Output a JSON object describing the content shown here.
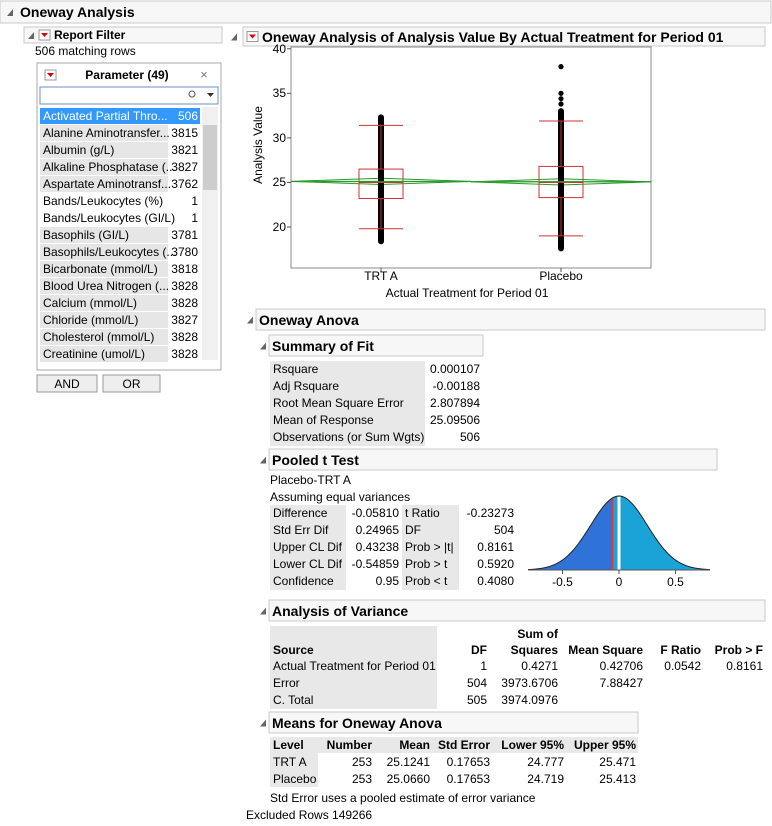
{
  "header": {
    "title": "Oneway Analysis"
  },
  "filter": {
    "title": "Report Filter",
    "matching": "506 matching rows",
    "list_title": "Parameter (49)",
    "items": [
      {
        "label": "Activated Partial Thro...",
        "count": 506
      },
      {
        "label": "Alanine Aminotransfer...",
        "count": 3815
      },
      {
        "label": "Albumin (g/L)",
        "count": 3821
      },
      {
        "label": "Alkaline Phosphatase (...",
        "count": 3827
      },
      {
        "label": "Aspartate Aminotransf...",
        "count": 3762
      },
      {
        "label": "Bands/Leukocytes (%)",
        "count": 1
      },
      {
        "label": "Bands/Leukocytes (GI/L)",
        "count": 1
      },
      {
        "label": "Basophils (GI/L)",
        "count": 3781
      },
      {
        "label": "Basophils/Leukocytes (...",
        "count": 3780
      },
      {
        "label": "Bicarbonate (mmol/L)",
        "count": 3818
      },
      {
        "label": "Blood Urea Nitrogen (...",
        "count": 3828
      },
      {
        "label": "Calcium (mmol/L)",
        "count": 3828
      },
      {
        "label": "Chloride (mmol/L)",
        "count": 3827
      },
      {
        "label": "Cholesterol (mmol/L)",
        "count": 3828
      },
      {
        "label": "Creatinine (umol/L)",
        "count": 3828
      }
    ],
    "buttons": [
      "AND",
      "OR"
    ]
  },
  "report": {
    "title": "Oneway Analysis of Analysis Value By Actual Treatment for Period 01"
  },
  "chart_data": {
    "type": "box",
    "ylabel": "Analysis Value",
    "xlabel": "Actual Treatment for Period 01",
    "categories": [
      "TRT A",
      "Placebo"
    ],
    "ylim": [
      15.4,
      40.2
    ],
    "yticks": [
      20,
      25,
      30,
      35,
      40
    ],
    "boxes": [
      {
        "whisker_low": 19.8,
        "q1": 23.2,
        "median": 25.0,
        "q3": 26.5,
        "whisker_high": 31.4,
        "strip": [
          18.4,
          32.3
        ]
      },
      {
        "whisker_low": 19.0,
        "q1": 23.3,
        "median": 25.0,
        "q3": 26.8,
        "whisker_high": 31.9,
        "strip": [
          17.6,
          33.0
        ],
        "outliers": [
          33.8,
          34.4,
          35.0,
          38.0
        ]
      }
    ]
  },
  "anova": {
    "title": "Oneway Anova"
  },
  "summary_of_fit": {
    "title": "Summary of Fit",
    "rows": [
      [
        "Rsquare",
        "0.000107"
      ],
      [
        "Adj Rsquare",
        "-0.00188"
      ],
      [
        "Root Mean Square Error",
        "2.807894"
      ],
      [
        "Mean of Response",
        "25.09506"
      ],
      [
        "Observations (or Sum Wgts)",
        "506"
      ]
    ]
  },
  "pooled_t": {
    "title": "Pooled t Test",
    "subtitle": "Placebo-TRT A",
    "note": "Assuming equal variances",
    "rows": [
      [
        "Difference",
        "-0.05810",
        "t Ratio",
        "-0.23273"
      ],
      [
        "Std Err Dif",
        "0.24965",
        "DF",
        "504"
      ],
      [
        "Upper CL Dif",
        "0.43238",
        "Prob > |t|",
        "0.8161"
      ],
      [
        "Lower CL Dif",
        "-0.54859",
        "Prob > t",
        "0.5920"
      ],
      [
        "Confidence",
        "0.95",
        "Prob < t",
        "0.4080"
      ]
    ],
    "plot": {
      "xlim": [
        -0.805,
        0.805
      ],
      "xticks": [
        -0.5,
        0,
        0.5
      ]
    }
  },
  "aov": {
    "title": "Analysis of Variance",
    "columns": [
      "Source",
      "DF",
      "Sum of Squares",
      "Mean Square",
      "F Ratio",
      "Prob > F"
    ],
    "rows": [
      [
        "Actual Treatment for Period 01",
        "1",
        "0.4271",
        "0.42706",
        "0.0542",
        "0.8161"
      ],
      [
        "Error",
        "504",
        "3973.6706",
        "7.88427"
      ],
      [
        "C. Total",
        "505",
        "3974.0976"
      ]
    ]
  },
  "means": {
    "title": "Means for Oneway Anova",
    "columns": [
      "Level",
      "Number",
      "Mean",
      "Std Error",
      "Lower 95%",
      "Upper 95%"
    ],
    "rows": [
      [
        "TRT A",
        "253",
        "25.1241",
        "0.17653",
        "24.777",
        "25.471"
      ],
      [
        "Placebo",
        "253",
        "25.0660",
        "0.17653",
        "24.719",
        "25.413"
      ]
    ],
    "note": "Std Error uses a pooled estimate of error variance"
  },
  "footer": {
    "excluded": "Excluded Rows 149266"
  }
}
